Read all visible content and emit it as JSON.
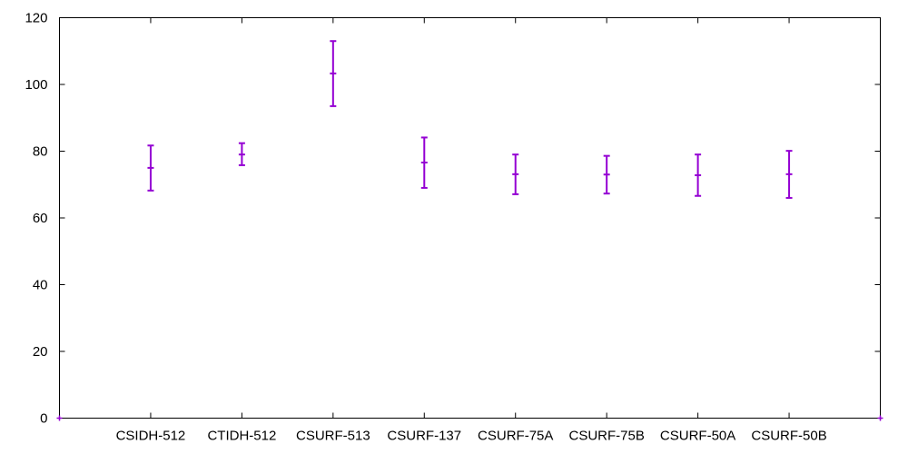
{
  "chart_data": {
    "type": "errorbar",
    "title": "",
    "xlabel": "",
    "ylabel": "",
    "categories": [
      "CSIDH-512",
      "CTIDH-512",
      "CSURF-513",
      "CSURF-137",
      "CSURF-75A",
      "CSURF-75B",
      "CSURF-50A",
      "CSURF-50B"
    ],
    "series": [
      {
        "color": "#9400d3",
        "mean": [
          75,
          79,
          103.3,
          76.6,
          73.1,
          73,
          72.8,
          73.1
        ],
        "low": [
          68.2,
          75.8,
          93.5,
          69,
          67.1,
          67.3,
          66.6,
          66
        ],
        "high": [
          81.7,
          82.4,
          113,
          84.1,
          79,
          78.6,
          79,
          80.1
        ]
      }
    ],
    "ylim": [
      0,
      120
    ],
    "yticks": [
      0,
      20,
      40,
      60,
      80,
      100,
      120
    ],
    "grid": false,
    "legend": "none"
  }
}
